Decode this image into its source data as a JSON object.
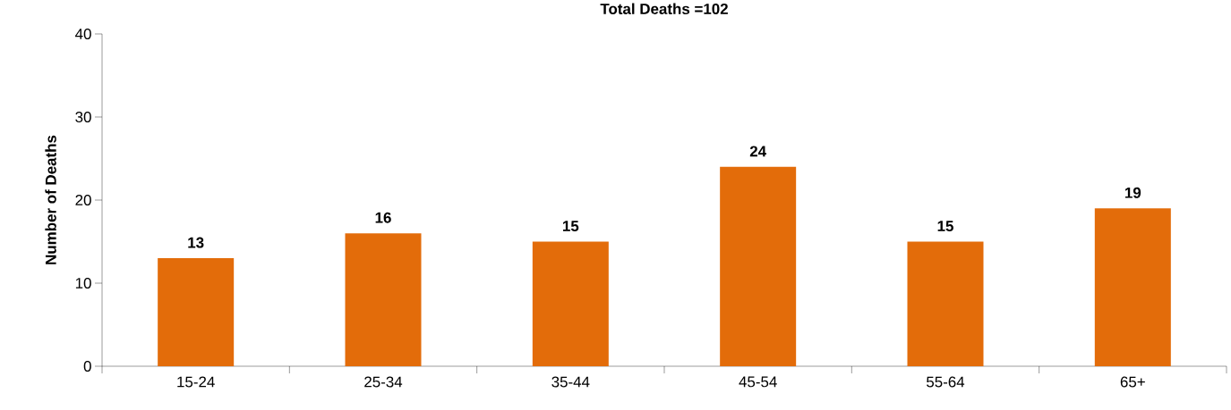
{
  "chart_data": {
    "type": "bar",
    "title": "Total Deaths =102",
    "ylabel": "Number of Deaths",
    "categories": [
      "15-24",
      "25-34",
      "35-44",
      "45-54",
      "55-64",
      "65+"
    ],
    "values": [
      13,
      16,
      15,
      24,
      15,
      19
    ],
    "color": "#e36c0a",
    "ylim": [
      0,
      40
    ],
    "yticks": [
      0,
      10,
      20,
      30,
      40
    ],
    "data_labels": true,
    "grid": false
  }
}
